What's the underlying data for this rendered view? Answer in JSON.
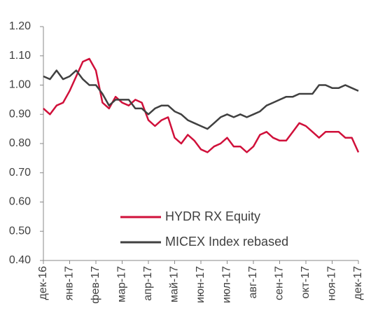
{
  "chart_data": {
    "type": "line",
    "x": [
      0,
      0.25,
      0.5,
      0.75,
      1,
      1.25,
      1.5,
      1.75,
      2,
      2.25,
      2.5,
      2.75,
      3,
      3.25,
      3.5,
      3.75,
      4,
      4.25,
      4.5,
      4.75,
      5,
      5.25,
      5.5,
      5.75,
      6,
      6.25,
      6.5,
      6.75,
      7,
      7.25,
      7.5,
      7.75,
      8,
      8.25,
      8.5,
      8.75,
      9,
      9.25,
      9.5,
      9.75,
      10,
      10.25,
      10.5,
      10.75,
      11,
      11.25,
      11.5,
      11.75,
      12
    ],
    "series": [
      {
        "name": "HYDR RX Equity",
        "color": "#d0103a",
        "values": [
          0.92,
          0.9,
          0.93,
          0.94,
          0.98,
          1.03,
          1.08,
          1.09,
          1.05,
          0.94,
          0.92,
          0.96,
          0.94,
          0.93,
          0.95,
          0.94,
          0.88,
          0.86,
          0.88,
          0.89,
          0.82,
          0.8,
          0.83,
          0.81,
          0.78,
          0.77,
          0.79,
          0.8,
          0.82,
          0.79,
          0.79,
          0.77,
          0.79,
          0.83,
          0.84,
          0.82,
          0.81,
          0.81,
          0.84,
          0.87,
          0.86,
          0.84,
          0.82,
          0.84,
          0.84,
          0.84,
          0.82,
          0.82,
          0.77
        ]
      },
      {
        "name": "MICEX Index rebased",
        "color": "#404040",
        "values": [
          1.03,
          1.02,
          1.05,
          1.02,
          1.03,
          1.05,
          1.02,
          1.0,
          1.0,
          0.97,
          0.93,
          0.95,
          0.95,
          0.95,
          0.92,
          0.92,
          0.9,
          0.92,
          0.93,
          0.93,
          0.91,
          0.9,
          0.88,
          0.87,
          0.86,
          0.85,
          0.87,
          0.89,
          0.9,
          0.89,
          0.9,
          0.89,
          0.9,
          0.91,
          0.93,
          0.94,
          0.95,
          0.96,
          0.96,
          0.97,
          0.97,
          0.97,
          1.0,
          1.0,
          0.99,
          0.99,
          1.0,
          0.99,
          0.98
        ]
      }
    ],
    "xlim": [
      0,
      12
    ],
    "xticks": [
      {
        "value": 0,
        "label": "дек-16"
      },
      {
        "value": 1,
        "label": "янв-17"
      },
      {
        "value": 2,
        "label": "фев-17"
      },
      {
        "value": 3,
        "label": "мар-17"
      },
      {
        "value": 4,
        "label": "апр-17"
      },
      {
        "value": 5,
        "label": "май-17"
      },
      {
        "value": 6,
        "label": "июн-17"
      },
      {
        "value": 7,
        "label": "июл-17"
      },
      {
        "value": 8,
        "label": "авг-17"
      },
      {
        "value": 9,
        "label": "сен-17"
      },
      {
        "value": 10,
        "label": "окт-17"
      },
      {
        "value": 11,
        "label": "ноя-17"
      },
      {
        "value": 12,
        "label": "дек-17"
      }
    ],
    "ylim": [
      0.4,
      1.2
    ],
    "yticks": [
      {
        "value": 0.4,
        "label": "0.40"
      },
      {
        "value": 0.5,
        "label": "0.50"
      },
      {
        "value": 0.6,
        "label": "0.60"
      },
      {
        "value": 0.7,
        "label": "0.70"
      },
      {
        "value": 0.8,
        "label": "0.80"
      },
      {
        "value": 0.9,
        "label": "0.90"
      },
      {
        "value": 1.0,
        "label": "1.00"
      },
      {
        "value": 1.1,
        "label": "1.10"
      },
      {
        "value": 1.2,
        "label": "1.20"
      }
    ],
    "grid": false,
    "legend": "lower center"
  }
}
